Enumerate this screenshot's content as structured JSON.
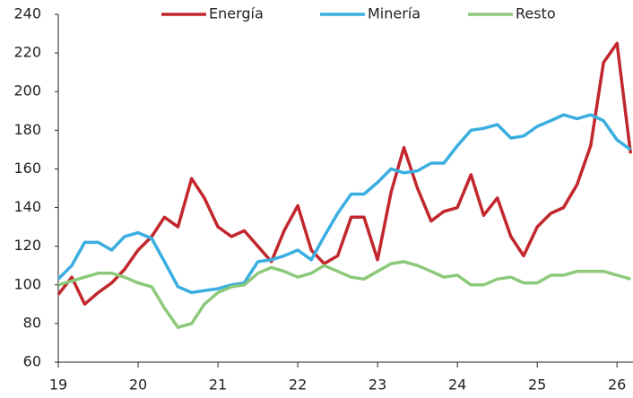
{
  "chart_data": {
    "type": "line",
    "x": [
      19,
      19.17,
      19.33,
      19.5,
      19.67,
      19.83,
      20,
      20.17,
      20.33,
      20.5,
      20.67,
      20.83,
      21,
      21.17,
      21.33,
      21.5,
      21.67,
      21.83,
      22,
      22.17,
      22.33,
      22.5,
      22.67,
      22.83,
      23,
      23.17,
      23.33,
      23.5,
      23.67,
      23.83,
      24,
      24.17,
      24.33,
      24.5,
      24.67,
      24.83,
      25,
      25.17,
      25.33,
      25.5,
      25.67,
      25.83,
      26,
      26.17
    ],
    "series": [
      {
        "name": "Energía",
        "color": "#c1272d",
        "values": [
          95,
          104,
          90,
          96,
          101,
          108,
          118,
          125,
          135,
          130,
          155,
          145,
          130,
          125,
          128,
          120,
          112,
          128,
          141,
          118,
          111,
          115,
          135,
          135,
          113,
          148,
          171,
          150,
          133,
          138,
          140,
          157,
          136,
          145,
          125,
          115,
          130,
          137,
          140,
          152,
          172,
          215,
          225,
          168
        ]
      },
      {
        "name": "Minería",
        "color": "#3aaee0",
        "values": [
          103,
          110,
          122,
          122,
          118,
          125,
          127,
          124,
          112,
          99,
          96,
          97,
          98,
          100,
          101,
          112,
          113,
          115,
          118,
          113,
          125,
          137,
          147,
          147,
          153,
          160,
          158,
          159,
          163,
          163,
          172,
          180,
          181,
          183,
          176,
          177,
          182,
          185,
          188,
          186,
          188,
          185,
          175,
          170
        ]
      },
      {
        "name": "Resto",
        "color": "#8cc97a",
        "values": [
          100,
          102,
          104,
          106,
          106,
          104,
          101,
          99,
          88,
          78,
          80,
          90,
          96,
          99,
          100,
          106,
          109,
          107,
          104,
          106,
          110,
          107,
          104,
          103,
          107,
          111,
          112,
          110,
          107,
          104,
          105,
          100,
          100,
          103,
          104,
          101,
          101,
          105,
          105,
          107,
          107,
          107,
          105,
          103
        ]
      }
    ],
    "xlim": [
      19,
      26.2
    ],
    "xticks": [
      19,
      20,
      21,
      22,
      23,
      24,
      25,
      26
    ],
    "ylim": [
      60,
      240
    ],
    "yticks": [
      60,
      80,
      100,
      120,
      140,
      160,
      180,
      200,
      220,
      240
    ],
    "grid": false,
    "legend": "top"
  }
}
